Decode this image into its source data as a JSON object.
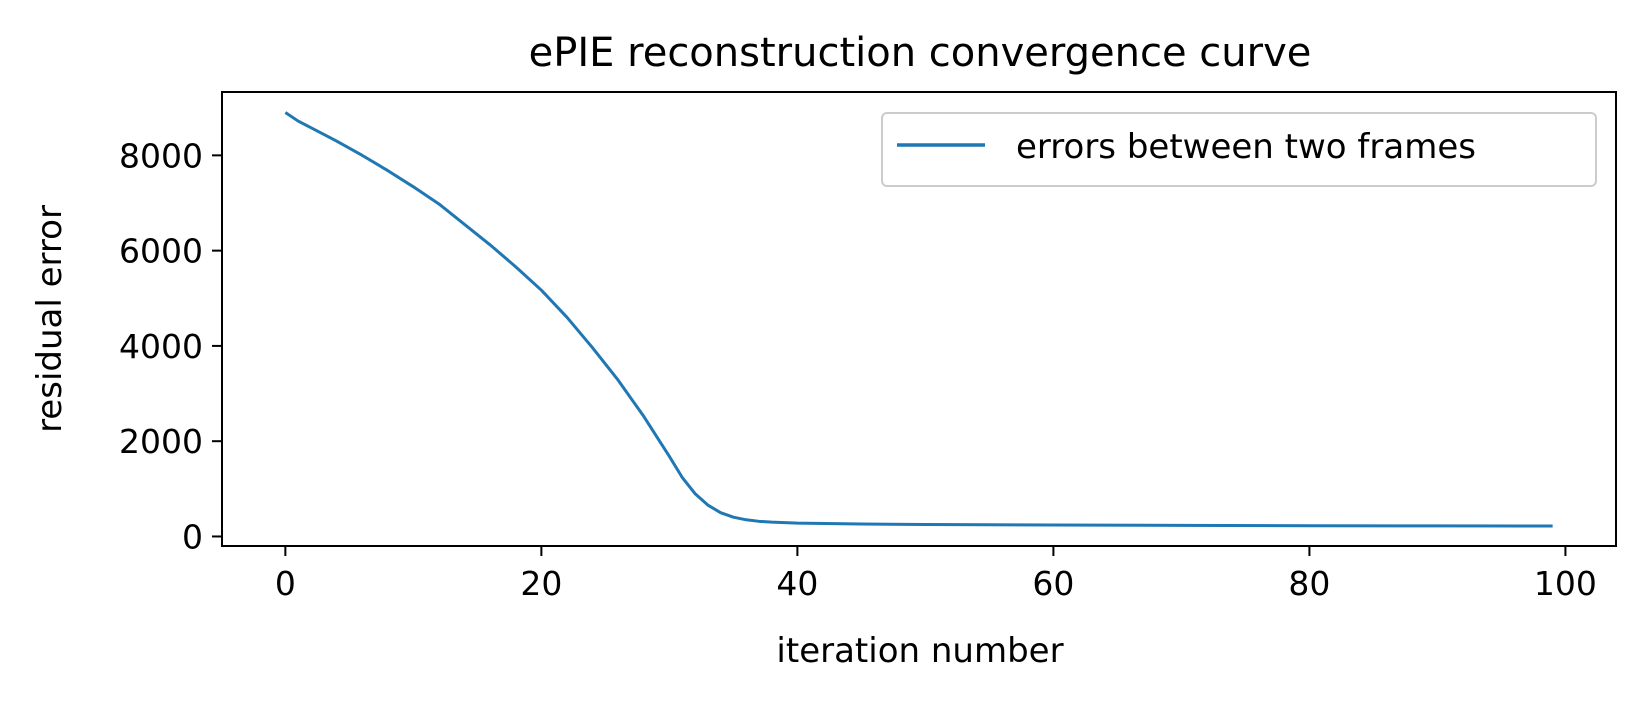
{
  "chart_data": {
    "type": "line",
    "title": "ePIE reconstruction convergence curve",
    "xlabel": "iteration number",
    "ylabel": "residual error",
    "xlim": [
      -4.95,
      103.95
    ],
    "ylim": [
      -200,
      9330
    ],
    "xticks": [
      0,
      20,
      40,
      60,
      80,
      100
    ],
    "yticks": [
      0,
      2000,
      4000,
      6000,
      8000
    ],
    "grid": false,
    "legend_position": "upper right",
    "series": [
      {
        "name": "errors between two frames",
        "color": "#1f77b4",
        "x": [
          0,
          1,
          2,
          4,
          6,
          8,
          10,
          12,
          14,
          16,
          18,
          20,
          22,
          24,
          26,
          28,
          29,
          30,
          31,
          32,
          33,
          34,
          35,
          36,
          37,
          38,
          40,
          45,
          50,
          60,
          70,
          80,
          90,
          99
        ],
        "y": [
          8900,
          8720,
          8580,
          8300,
          8000,
          7680,
          7340,
          6980,
          6550,
          6120,
          5660,
          5170,
          4600,
          3960,
          3280,
          2520,
          2100,
          1680,
          1240,
          900,
          660,
          500,
          405,
          350,
          318,
          300,
          280,
          262,
          250,
          240,
          232,
          226,
          222,
          220
        ]
      }
    ]
  }
}
